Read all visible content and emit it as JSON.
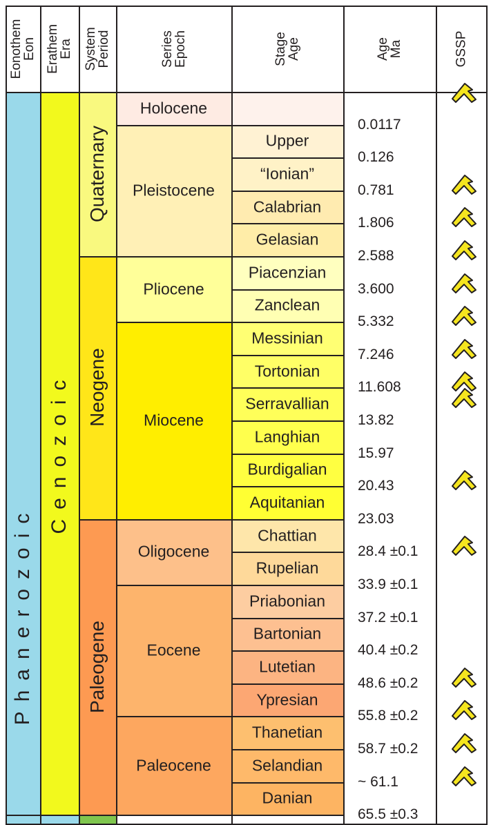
{
  "headers": [
    {
      "key": "eon",
      "label": "Eonothem\nEon"
    },
    {
      "key": "era",
      "label": "Erathem\nEra"
    },
    {
      "key": "period",
      "label": "System\nPeriod"
    },
    {
      "key": "epoch",
      "label": "Series\nEpoch"
    },
    {
      "key": "stage",
      "label": "Stage\nAge"
    },
    {
      "key": "age",
      "label": "Age\nMa"
    },
    {
      "key": "gssp",
      "label": "GSSP"
    }
  ],
  "colors": {
    "eon_phanerozoic": "#9ad9ea",
    "era_cenozoic": "#f2f91d",
    "period_quaternary": "#f9f97f",
    "period_neogene": "#ffe619",
    "period_paleogene": "#fd9a52",
    "next_period": "#7fc64e",
    "gssp_fill": "#f5e51f"
  },
  "eon": {
    "name": "Phanerozoic",
    "start": 0,
    "end": 22
  },
  "era": {
    "name": "Cenozoic",
    "start": 0,
    "end": 22
  },
  "periods": [
    {
      "name": "Quaternary",
      "start": 0,
      "end": 5,
      "color": "#f9f97f"
    },
    {
      "name": "Neogene",
      "start": 5,
      "end": 13,
      "color": "#ffe619"
    },
    {
      "name": "Paleogene",
      "start": 13,
      "end": 22,
      "color": "#fd9a52"
    }
  ],
  "epochs": [
    {
      "name": "Holocene",
      "start": 0,
      "end": 1,
      "color": "#feebe3"
    },
    {
      "name": "Pleistocene",
      "start": 1,
      "end": 5,
      "color": "#fff0b6"
    },
    {
      "name": "Pliocene",
      "start": 5,
      "end": 7,
      "color": "#ffff99"
    },
    {
      "name": "Miocene",
      "start": 7,
      "end": 13,
      "color": "#ffee00"
    },
    {
      "name": "Oligocene",
      "start": 13,
      "end": 15,
      "color": "#fdc08a"
    },
    {
      "name": "Eocene",
      "start": 15,
      "end": 19,
      "color": "#fdb46c"
    },
    {
      "name": "Paleocene",
      "start": 19,
      "end": 22,
      "color": "#fda75f"
    }
  ],
  "stages": [
    {
      "name": "",
      "color": "#fef2ec"
    },
    {
      "name": "Upper",
      "color": "#fff2d3"
    },
    {
      "name": "“Ionian”",
      "color": "#fff2c7"
    },
    {
      "name": "Calabrian",
      "color": "#ffebb0"
    },
    {
      "name": "Gelasian",
      "color": "#ffeda8"
    },
    {
      "name": "Piacenzian",
      "color": "#ffffbf"
    },
    {
      "name": "Zanclean",
      "color": "#ffffb3"
    },
    {
      "name": "Messinian",
      "color": "#ffff73"
    },
    {
      "name": "Tortonian",
      "color": "#ffff66"
    },
    {
      "name": "Serravallian",
      "color": "#ffff59"
    },
    {
      "name": "Langhian",
      "color": "#ffff4d"
    },
    {
      "name": "Burdigalian",
      "color": "#ffff41"
    },
    {
      "name": "Aquitanian",
      "color": "#ffff33"
    },
    {
      "name": "Chattian",
      "color": "#fee6aa"
    },
    {
      "name": "Rupelian",
      "color": "#fed99a"
    },
    {
      "name": "Priabonian",
      "color": "#fdcda1"
    },
    {
      "name": "Bartonian",
      "color": "#fdc091"
    },
    {
      "name": "Lutetian",
      "color": "#fcb482"
    },
    {
      "name": "Ypresian",
      "color": "#fca773"
    },
    {
      "name": "Thanetian",
      "color": "#fdbf6f"
    },
    {
      "name": "Selandian",
      "color": "#feb96a"
    },
    {
      "name": "Danian",
      "color": "#fdb462"
    }
  ],
  "ages": [
    {
      "label": "0.0117",
      "boundary": 1.0
    },
    {
      "label": "0.126",
      "boundary": 2.0
    },
    {
      "label": "0.781",
      "boundary": 3.0
    },
    {
      "label": "1.806",
      "boundary": 4.0
    },
    {
      "label": "2.588",
      "boundary": 5.0
    },
    {
      "label": "3.600",
      "boundary": 6.0
    },
    {
      "label": "5.332",
      "boundary": 7.0
    },
    {
      "label": "7.246",
      "boundary": 8.0
    },
    {
      "label": "11.608",
      "boundary": 9.0
    },
    {
      "label": "13.82",
      "boundary": 10.0
    },
    {
      "label": "15.97",
      "boundary": 11.0
    },
    {
      "label": "20.43",
      "boundary": 12.0
    },
    {
      "label": "23.03",
      "boundary": 13.0
    },
    {
      "label": "28.4 ±0.1",
      "boundary": 14.0
    },
    {
      "label": "33.9 ±0.1",
      "boundary": 15.0
    },
    {
      "label": "37.2 ±0.1",
      "boundary": 16.0
    },
    {
      "label": "40.4 ±0.2",
      "boundary": 17.0
    },
    {
      "label": "48.6 ±0.2",
      "boundary": 18.0
    },
    {
      "label": "55.8 ±0.2",
      "boundary": 19.0
    },
    {
      "label": "58.7 ±0.2",
      "boundary": 20.0
    },
    {
      "label": "~ 61.1",
      "boundary": 21.0
    },
    {
      "label": "65.5 ±0.3",
      "boundary": 22.0
    }
  ],
  "gssp_boundaries": [
    0.2,
    3.0,
    4.0,
    5.0,
    6.0,
    7.0,
    8.0,
    9.0,
    9.5,
    12.0,
    14.0,
    18.0,
    19.0,
    20.0,
    21.0
  ]
}
